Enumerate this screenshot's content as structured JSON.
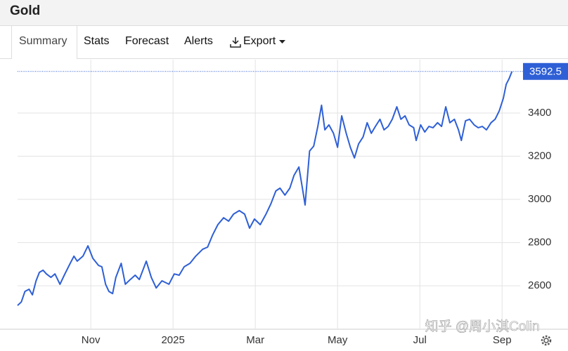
{
  "header": {
    "title": "Gold"
  },
  "tabs": [
    "Summary",
    "Stats",
    "Forecast",
    "Alerts",
    "Export"
  ],
  "watermark": "知乎 @周小淇Colin",
  "chart_data": {
    "type": "line",
    "x": [
      -3.78,
      -3.69,
      -3.6,
      -3.5,
      -3.42,
      -3.33,
      -3.25,
      -3.16,
      -3.08,
      -2.97,
      -2.87,
      -2.75,
      -2.63,
      -2.5,
      -2.41,
      -2.33,
      -2.19,
      -2.07,
      -1.95,
      -1.81,
      -1.73,
      -1.64,
      -1.56,
      -1.47,
      -1.39,
      -1.26,
      -1.16,
      -1.04,
      -0.92,
      -0.82,
      -0.65,
      -0.53,
      -0.41,
      -0.27,
      -0.1,
      0.03,
      0.15,
      0.27,
      0.41,
      0.55,
      0.72,
      0.84,
      0.96,
      1.09,
      1.23,
      1.35,
      1.47,
      1.61,
      1.74,
      1.86,
      1.98,
      2.12,
      2.26,
      2.38,
      2.5,
      2.6,
      2.72,
      2.84,
      2.94,
      3.06,
      3.15,
      3.21,
      3.32,
      3.42,
      3.52,
      3.61,
      3.69,
      3.79,
      3.9,
      4.0,
      4.1,
      4.21,
      4.31,
      4.41,
      4.51,
      4.62,
      4.72,
      4.82,
      4.92,
      5.03,
      5.13,
      5.23,
      5.33,
      5.44,
      5.54,
      5.64,
      5.74,
      5.85,
      5.91,
      6.02,
      6.12,
      6.22,
      6.32,
      6.43,
      6.53,
      6.63,
      6.73,
      6.84,
      6.94,
      7.01,
      7.11,
      7.21,
      7.32,
      7.42,
      7.52,
      7.62,
      7.73,
      7.83,
      7.93,
      8.03,
      8.1,
      8.17,
      8.24
    ],
    "series": [
      {
        "name": "Gold",
        "color": "#2e5fd6",
        "values": [
          2509,
          2525,
          2574,
          2584,
          2558,
          2623,
          2662,
          2672,
          2655,
          2639,
          2655,
          2607,
          2655,
          2704,
          2737,
          2714,
          2737,
          2785,
          2727,
          2694,
          2688,
          2607,
          2574,
          2564,
          2639,
          2704,
          2607,
          2629,
          2649,
          2629,
          2714,
          2639,
          2590,
          2623,
          2607,
          2655,
          2649,
          2688,
          2704,
          2737,
          2769,
          2779,
          2834,
          2883,
          2915,
          2899,
          2932,
          2948,
          2932,
          2867,
          2909,
          2883,
          2932,
          2980,
          3039,
          3052,
          3020,
          3052,
          3111,
          3150,
          3046,
          2974,
          3224,
          3247,
          3338,
          3436,
          3322,
          3345,
          3306,
          3241,
          3387,
          3306,
          3241,
          3192,
          3257,
          3289,
          3355,
          3306,
          3338,
          3371,
          3322,
          3338,
          3371,
          3429,
          3371,
          3387,
          3345,
          3332,
          3273,
          3345,
          3312,
          3338,
          3332,
          3355,
          3338,
          3429,
          3355,
          3371,
          3322,
          3273,
          3364,
          3371,
          3345,
          3332,
          3338,
          3322,
          3355,
          3371,
          3410,
          3468,
          3533,
          3559,
          3592.5
        ]
      }
    ],
    "last_value": 3592.5,
    "xlim": [
      -3.78,
      8.44
    ],
    "xticks": [
      {
        "value": -2,
        "label": "Nov"
      },
      {
        "value": 0,
        "label": "2025"
      },
      {
        "value": 2,
        "label": "Mar"
      },
      {
        "value": 4,
        "label": "May"
      },
      {
        "value": 6,
        "label": "Jul"
      },
      {
        "value": 8,
        "label": "Sep"
      }
    ],
    "ylim": [
      2402,
      3647
    ],
    "yticks": [
      2600,
      2800,
      3000,
      3200,
      3400
    ],
    "grid": true
  }
}
